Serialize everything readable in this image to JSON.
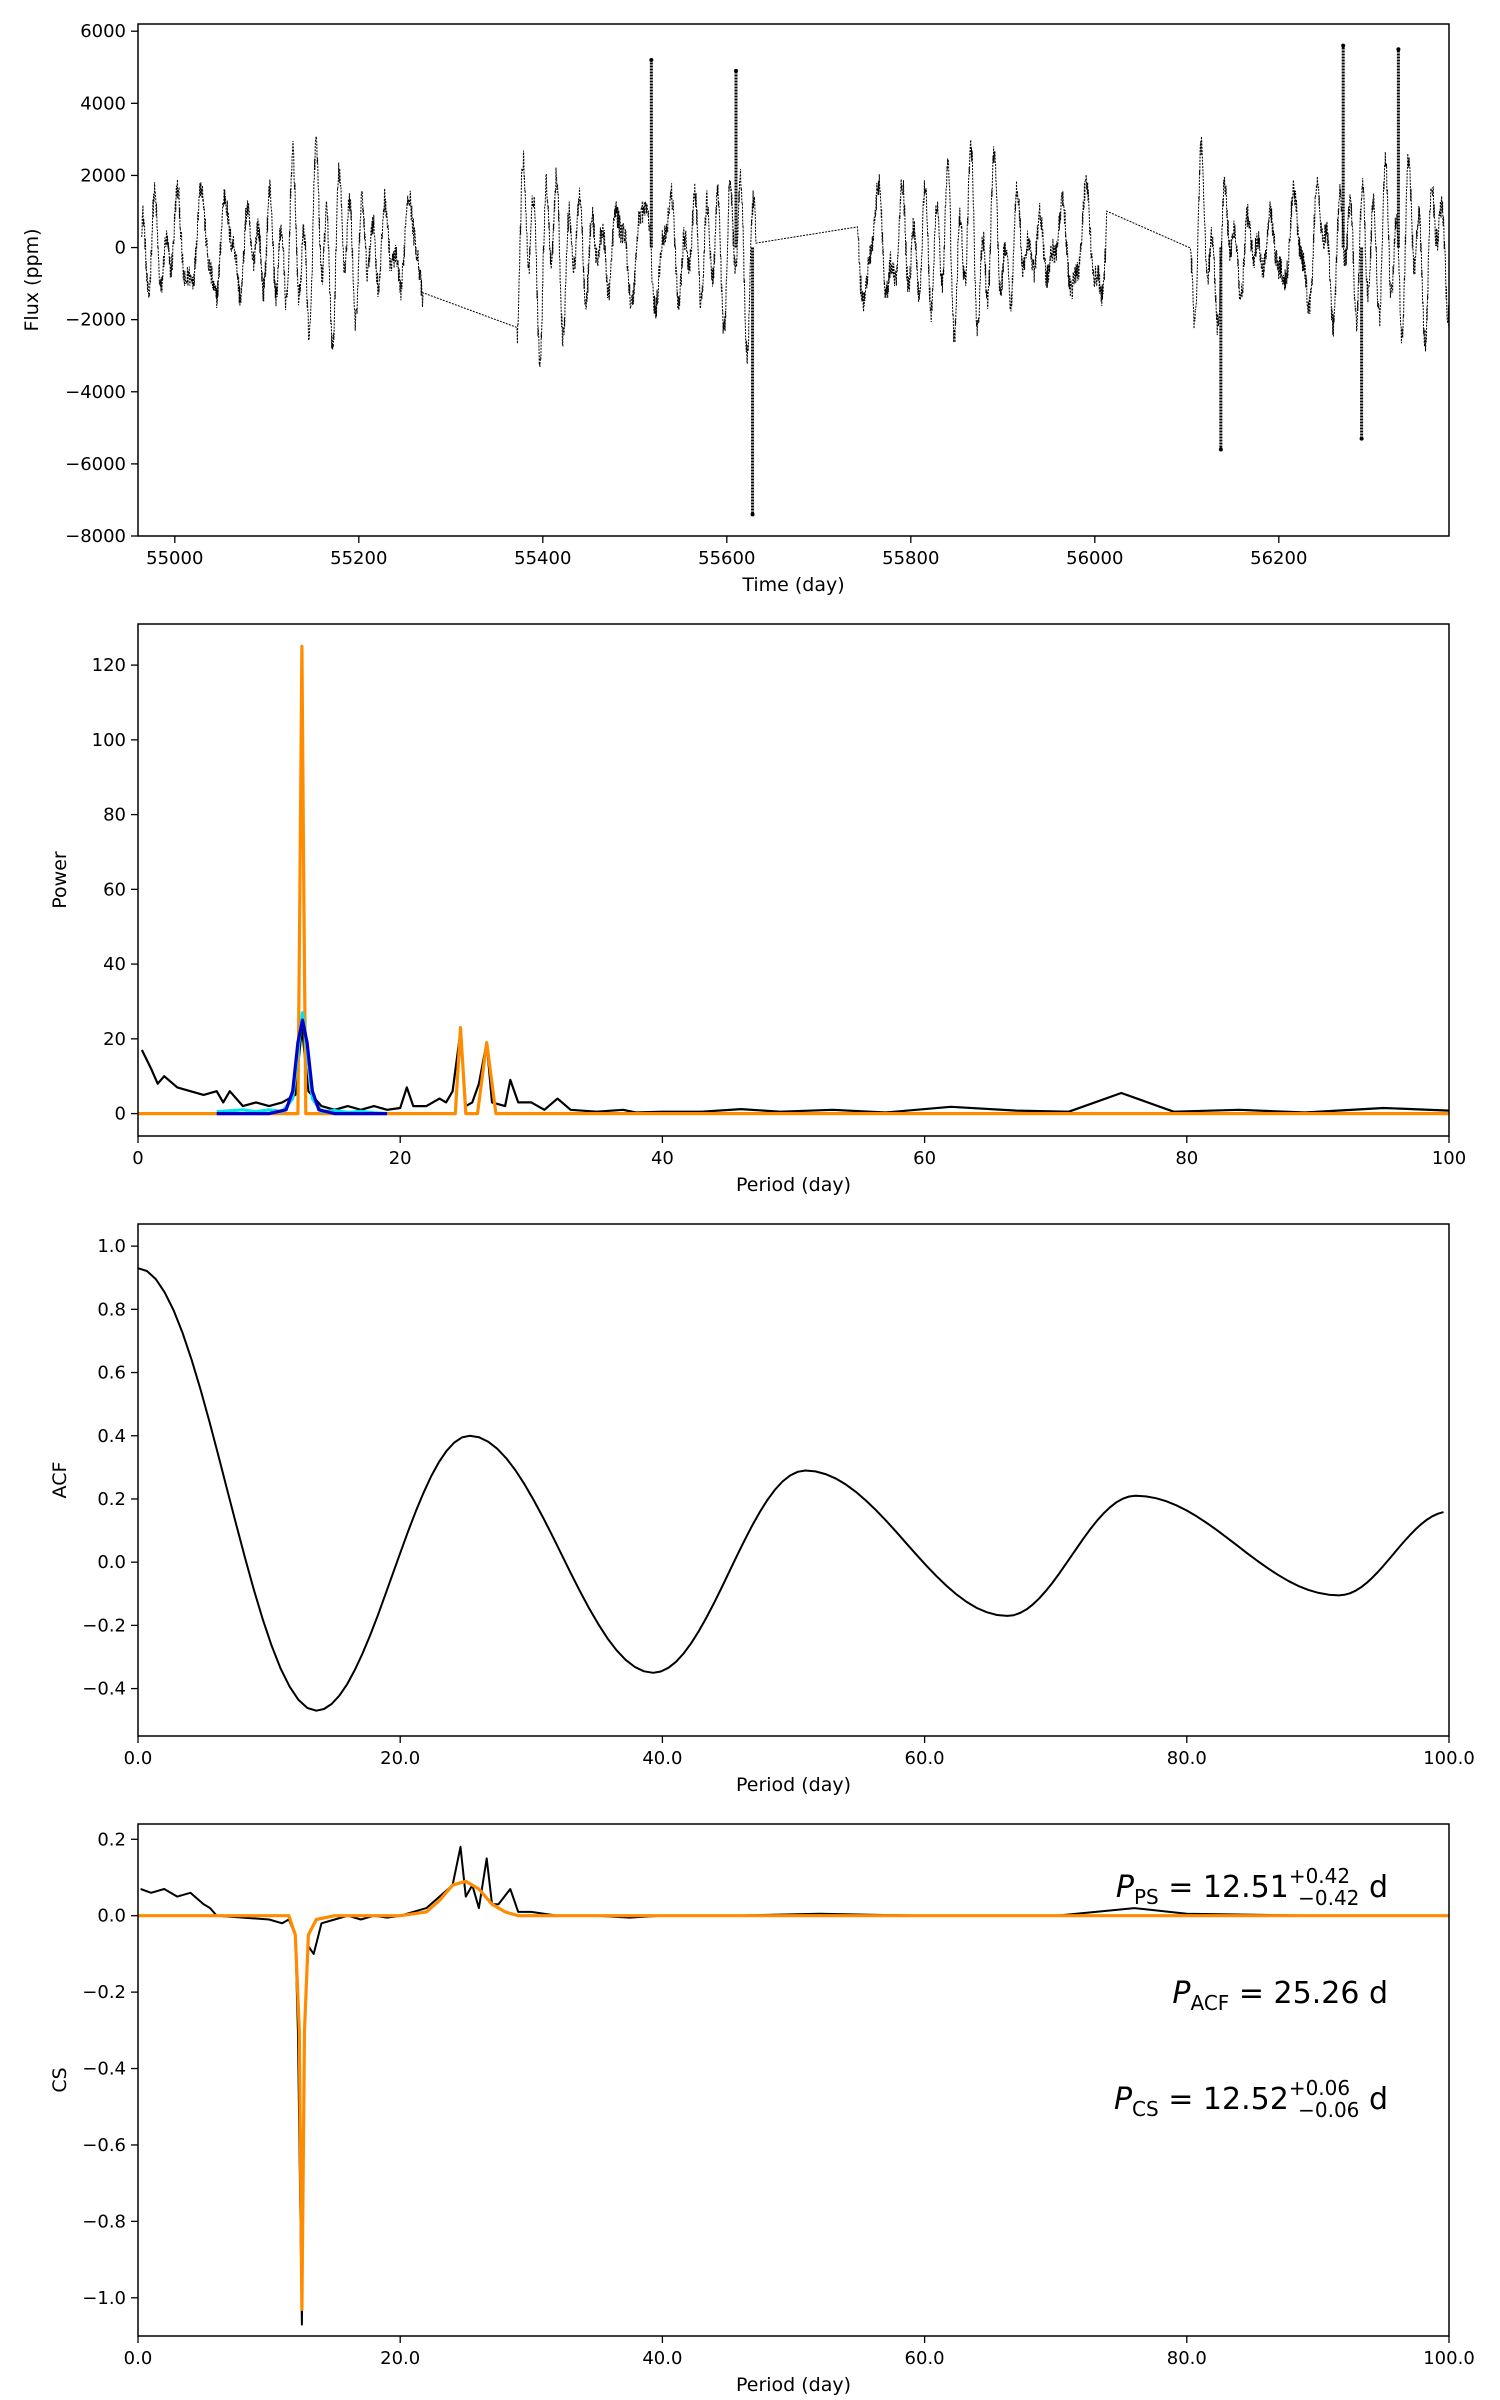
{
  "figure": {
    "colors": {
      "black": "#000000",
      "orange": "#ff8c00",
      "blue": "#0000cd",
      "cyan": "#00e5ee"
    }
  },
  "chart_data": [
    {
      "id": "lightcurve",
      "type": "scatter",
      "title": "",
      "xlabel": "Time (day)",
      "ylabel": "Flux (ppm)",
      "xlim": [
        54960,
        56385
      ],
      "ylim": [
        -8000,
        6200
      ],
      "xticks": [
        55000,
        55200,
        55400,
        55600,
        55800,
        56000,
        56200
      ],
      "yticks": [
        -8000,
        -6000,
        -4000,
        -2000,
        0,
        2000,
        4000,
        6000
      ],
      "grid": false,
      "segments": [
        {
          "start": 54964,
          "end": 55270
        },
        {
          "start": 55372,
          "end": 55632
        },
        {
          "start": 55742,
          "end": 56013
        },
        {
          "start": 56104,
          "end": 56385
        }
      ],
      "extremes": [
        {
          "x": 55518,
          "y": 5200
        },
        {
          "x": 55610,
          "y": 4900
        },
        {
          "x": 55628,
          "y": -7400
        },
        {
          "x": 56270,
          "y": 5600
        },
        {
          "x": 56330,
          "y": 5500
        },
        {
          "x": 56137,
          "y": -5600
        },
        {
          "x": 56290,
          "y": -5300
        }
      ]
    },
    {
      "id": "power-spectrum",
      "type": "line",
      "title": "",
      "xlabel": "Period (day)",
      "ylabel": "Power",
      "xlim": [
        0,
        100
      ],
      "ylim": [
        -6,
        131
      ],
      "xticks": [
        0,
        20,
        40,
        60,
        80,
        100
      ],
      "yticks": [
        0,
        20,
        40,
        60,
        80,
        100,
        120
      ],
      "grid": false,
      "series": [
        {
          "color": "#000000",
          "x": [
            0.3,
            1,
            1.5,
            2,
            3,
            4,
            5,
            6,
            6.5,
            7,
            8,
            9,
            10,
            11,
            12,
            12.5,
            13,
            14,
            15,
            16,
            17,
            18,
            19,
            20,
            20.5,
            21,
            22,
            23,
            23.5,
            24,
            24.6,
            25,
            25.5,
            26,
            26.6,
            27,
            28,
            28.4,
            29,
            30,
            31,
            32,
            33,
            35,
            37,
            38,
            40,
            43,
            46,
            49,
            53,
            57,
            62,
            67,
            71,
            75,
            79,
            84,
            89,
            95,
            100
          ],
          "y": [
            17,
            12,
            8,
            10,
            7,
            6,
            5,
            6,
            3,
            6,
            2,
            3,
            2,
            3,
            5,
            23,
            6,
            2,
            1,
            2,
            1,
            2,
            1,
            1.5,
            7,
            2,
            2,
            4,
            3,
            6,
            22,
            2,
            3,
            8,
            19,
            3,
            2,
            9,
            3,
            3,
            1,
            4,
            1,
            0.5,
            1,
            0.3,
            0.5,
            0.5,
            1.2,
            0.5,
            1,
            0.3,
            1.8,
            0.8,
            0.5,
            5.5,
            0.5,
            1,
            0.3,
            1.5,
            0.8
          ]
        },
        {
          "color": "#ff8c00",
          "x": [
            0,
            12.2,
            12.35,
            12.5,
            12.65,
            12.8,
            24.2,
            24.6,
            25.0,
            25.9,
            26.6,
            27.3,
            100
          ],
          "y": [
            0,
            0,
            60,
            125,
            60,
            0,
            0,
            23,
            0,
            0,
            19,
            0,
            0
          ]
        },
        {
          "color": "#00e5ee",
          "x": [
            6,
            8,
            9,
            10,
            11,
            11.8,
            12.3,
            12.55,
            12.8,
            13.3,
            14,
            15,
            16,
            17,
            18,
            19
          ],
          "y": [
            0.5,
            1,
            0.5,
            1,
            0.5,
            4,
            20,
            27,
            20,
            4,
            0.5,
            0.8,
            0.3,
            0.6,
            0.2,
            0
          ]
        },
        {
          "color": "#0000cd",
          "x": [
            6,
            10,
            11.3,
            11.8,
            12.2,
            12.55,
            12.9,
            13.3,
            13.8,
            15,
            19
          ],
          "y": [
            0,
            0,
            1,
            6,
            19,
            25,
            19,
            6,
            1,
            0,
            0
          ]
        }
      ]
    },
    {
      "id": "acf",
      "type": "line",
      "title": "",
      "xlabel": "Period (day)",
      "ylabel": "ACF",
      "xlim": [
        0,
        100
      ],
      "ylim": [
        -0.55,
        1.07
      ],
      "xticks": [
        0,
        20,
        40,
        60,
        80,
        100
      ],
      "yticks": [
        -0.4,
        -0.2,
        0.0,
        0.2,
        0.4,
        0.6,
        0.8,
        1.0
      ],
      "grid": false,
      "series": [
        {
          "color": "#000000",
          "x": [
            0,
            13.6,
            25.3,
            39.3,
            50.9,
            66.3,
            76.1,
            91.6,
            100
          ],
          "y": [
            0.93,
            -0.47,
            0.4,
            -0.35,
            0.29,
            -0.17,
            0.21,
            -0.105,
            0.16
          ]
        }
      ]
    },
    {
      "id": "composite-spectrum",
      "type": "line",
      "title": "",
      "xlabel": "Period (day)",
      "ylabel": "CS",
      "xlim": [
        0,
        100
      ],
      "ylim": [
        -1.1,
        0.24
      ],
      "xticks": [
        0,
        20,
        40,
        60,
        80,
        100
      ],
      "yticks": [
        -1.0,
        -0.8,
        -0.6,
        -0.4,
        -0.2,
        0.0,
        0.2
      ],
      "grid": false,
      "series": [
        {
          "color": "#000000",
          "x": [
            0.2,
            1,
            2,
            3,
            4,
            5,
            5.5,
            6,
            8,
            10,
            11,
            11.5,
            12,
            12.2,
            12.5,
            12.7,
            13,
            13.4,
            14,
            15,
            16,
            17,
            18,
            19,
            20,
            22,
            23,
            24,
            24.6,
            25,
            25.5,
            26,
            26.6,
            27,
            27.5,
            28.4,
            29,
            30,
            32,
            35,
            37.5,
            40,
            45,
            52,
            60,
            70,
            76,
            80,
            90,
            100
          ],
          "y": [
            0.07,
            0.06,
            0.07,
            0.05,
            0.06,
            0.03,
            0.02,
            0.0,
            -0.005,
            -0.01,
            -0.02,
            -0.01,
            -0.05,
            -0.3,
            -1.07,
            -0.3,
            -0.08,
            -0.1,
            -0.02,
            -0.01,
            0.0,
            -0.01,
            0.0,
            -0.005,
            0.0,
            0.02,
            0.05,
            0.08,
            0.18,
            0.05,
            0.08,
            0.02,
            0.15,
            0.03,
            0.03,
            0.07,
            0.01,
            0.01,
            0.0,
            0.0,
            -0.005,
            0.0,
            0.0,
            0.005,
            0.0,
            0.0,
            0.02,
            0.005,
            0.0,
            0.0
          ]
        },
        {
          "color": "#ff8c00",
          "x": [
            0,
            11.5,
            12.0,
            12.3,
            12.5,
            12.7,
            13.0,
            13.6,
            15,
            20,
            22,
            23,
            24,
            25,
            26,
            27,
            28,
            29,
            30,
            100
          ],
          "y": [
            0,
            0,
            -0.05,
            -0.3,
            -1.03,
            -0.3,
            -0.05,
            -0.01,
            0,
            0,
            0.01,
            0.04,
            0.08,
            0.09,
            0.07,
            0.03,
            0.01,
            0.0,
            0,
            0
          ]
        }
      ],
      "annotations": {
        "ps": {
          "var": "P",
          "sub": "PS",
          "value": "12.51",
          "sup": "+0.42",
          "inf": "−0.42",
          "unit": "d"
        },
        "acf": {
          "var": "P",
          "sub": "ACF",
          "value": "25.26",
          "unit": "d"
        },
        "cs": {
          "var": "P",
          "sub": "CS",
          "value": "12.52",
          "sup": "+0.06",
          "inf": "−0.06",
          "unit": "d"
        }
      }
    }
  ]
}
